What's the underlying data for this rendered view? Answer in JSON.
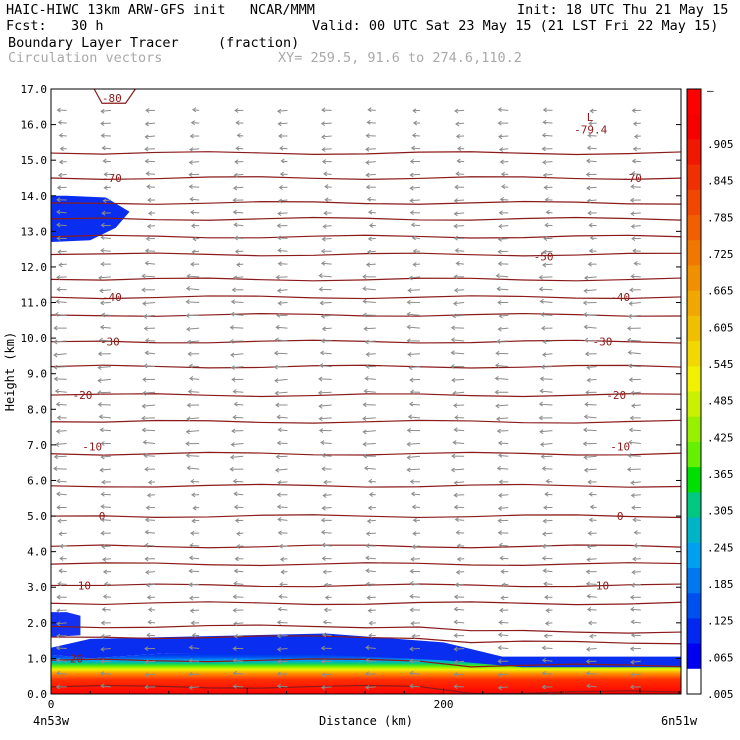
{
  "header": {
    "line1_left": "HAIC-HIWC 13km ARW-GFS init   NCAR/MMM",
    "line1_right": "Init: 18 UTC Thu 21 May 15",
    "line2_left": "Fcst:   30 h",
    "line2_right": "Valid: 00 UTC Sat 23 May 15 (21 LST Fri 22 May 15)",
    "field_name": "Boundary Layer Tracer",
    "field_units": "(fraction)",
    "vectors_label": "Circulation vectors",
    "xy_label": "XY= 259.5, 91.6 to 274.6,110.2"
  },
  "colors": {
    "contour": "#8b1a1a",
    "vectors": "#8c8c8c"
  },
  "chart_data": {
    "type": "heatmap",
    "xlabel": "Distance (km)",
    "ylabel": "Height (km)",
    "x_range": [
      0,
      321
    ],
    "ylim": [
      0,
      17
    ],
    "x_ticks": [
      0,
      200
    ],
    "y_ticks": [
      "0.0",
      "1.0",
      "2.0",
      "3.0",
      "4.0",
      "5.0",
      "6.0",
      "7.0",
      "8.0",
      "9.0",
      "10.0",
      "11.0",
      "12.0",
      "13.0",
      "14.0",
      "15.0",
      "16.0",
      "17.0"
    ],
    "x_endpoint_labels": [
      "4n53w",
      "6n51w"
    ],
    "colorbar": {
      "labels": [
        ".905",
        ".845",
        ".785",
        ".725",
        ".665",
        ".605",
        ".545",
        ".485",
        ".425",
        ".365",
        ".305",
        ".245",
        ".185",
        ".125",
        ".065",
        ".005"
      ],
      "top_label": "–",
      "colors": [
        "#ff0000",
        "#f60000",
        "#f01800",
        "#f03000",
        "#f04800",
        "#f06000",
        "#f07800",
        "#f09000",
        "#f0a800",
        "#f0c000",
        "#f0d800",
        "#f0f000",
        "#c8f000",
        "#96f000",
        "#64f000",
        "#00e000",
        "#00c880",
        "#00b4c8",
        "#00a0f0",
        "#0078f0",
        "#0050f0",
        "#0028f0",
        "#0000f0",
        "#ffffff"
      ]
    },
    "temperature_contours": {
      "levels": [
        20,
        10,
        0,
        -10,
        -20,
        -30,
        -40,
        -50,
        -70,
        -80
      ],
      "labels": [
        {
          "text": "20",
          "x": 13,
          "y": 1.0
        },
        {
          "text": "10",
          "x": 17,
          "y": 3.05
        },
        {
          "text": "10",
          "x": 281,
          "y": 3.05
        },
        {
          "text": "0",
          "x": 26,
          "y": 5.0
        },
        {
          "text": "0",
          "x": 290,
          "y": 5.0
        },
        {
          "text": "-10",
          "x": 21,
          "y": 6.95
        },
        {
          "text": "-10",
          "x": 290,
          "y": 6.95
        },
        {
          "text": "-20",
          "x": 16,
          "y": 8.4
        },
        {
          "text": "-20",
          "x": 288,
          "y": 8.4
        },
        {
          "text": "-30",
          "x": 30,
          "y": 9.9
        },
        {
          "text": "-30",
          "x": 281,
          "y": 9.9
        },
        {
          "text": "-40",
          "x": 31,
          "y": 11.15
        },
        {
          "text": "-40",
          "x": 290,
          "y": 11.15
        },
        {
          "text": "-50",
          "x": 251,
          "y": 12.3
        },
        {
          "text": "-70",
          "x": 31,
          "y": 14.5
        },
        {
          "text": "-70",
          "x": 296,
          "y": 14.5
        },
        {
          "text": "-80",
          "x": 31,
          "y": 16.75
        }
      ],
      "low": {
        "letter": "L",
        "value": "-79.4"
      }
    },
    "tracer": {
      "surface_layer_top_km": [
        1.1,
        1.0,
        1.15,
        1.15,
        1.1,
        0.95,
        0.75
      ],
      "layer_x_km": [
        0,
        20,
        60,
        140,
        200,
        240,
        321
      ],
      "upper_patch_km": {
        "x": [
          0,
          40
        ],
        "y": [
          12.7,
          14.0
        ]
      },
      "side_patch_km": {
        "x": [
          0,
          15
        ],
        "y": [
          1.6,
          2.3
        ]
      }
    }
  }
}
